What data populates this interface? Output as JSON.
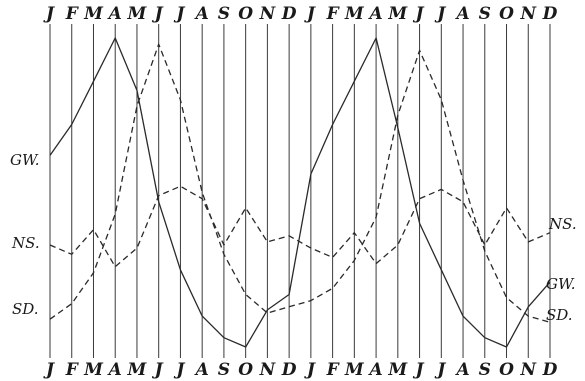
{
  "chart_data": {
    "type": "line",
    "title": "",
    "xlabel": "",
    "ylabel": "",
    "grid": true,
    "categories": [
      "J",
      "F",
      "M",
      "A",
      "M",
      "J",
      "J",
      "A",
      "S",
      "O",
      "N",
      "D",
      "J",
      "F",
      "M",
      "A",
      "M",
      "J",
      "J",
      "A",
      "S",
      "O",
      "N",
      "D"
    ],
    "ylim": [
      0,
      100
    ],
    "series": [
      {
        "name": "GW.",
        "style": "solid",
        "color": "#2a2a2a",
        "values": [
          62,
          72,
          86,
          100,
          83,
          47,
          25,
          10,
          3,
          0,
          12,
          17,
          56,
          72,
          86,
          100,
          71,
          40,
          25,
          10,
          3,
          0,
          13,
          21
        ]
      },
      {
        "name": "NS.",
        "style": "dashed",
        "color": "#2a2a2a",
        "values": [
          33,
          30,
          38,
          26,
          32,
          49,
          52,
          48,
          33,
          45,
          34,
          36,
          32,
          29,
          37,
          27,
          33,
          48,
          51,
          47,
          33,
          45,
          34,
          37
        ]
      },
      {
        "name": "SD.",
        "style": "dashed",
        "color": "#2a2a2a",
        "values": [
          9,
          14,
          24,
          43,
          78,
          98,
          80,
          50,
          30,
          17,
          11,
          13,
          15,
          19,
          28,
          42,
          75,
          96,
          80,
          54,
          31,
          16,
          10,
          8
        ]
      }
    ]
  }
}
